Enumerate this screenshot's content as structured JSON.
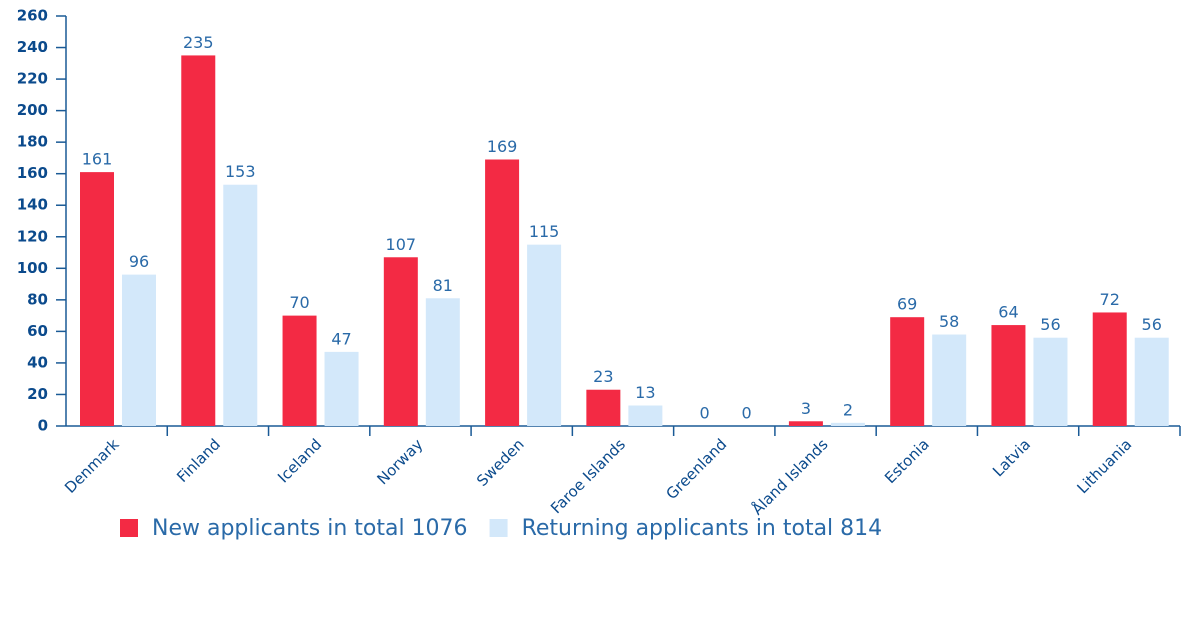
{
  "chart_data": {
    "type": "bar",
    "categories": [
      "Denmark",
      "Finland",
      "Iceland",
      "Norway",
      "Sweden",
      "Faroe Islands",
      "Greenland",
      "Åland Islands",
      "Estonia",
      "Latvia",
      "Lithuania"
    ],
    "series": [
      {
        "name": "New applicants in total 1076",
        "color": "#f32a44",
        "values": [
          161,
          235,
          70,
          107,
          169,
          23,
          0,
          3,
          69,
          64,
          72
        ]
      },
      {
        "name": "Returning applicants in total 814",
        "color": "#d3e8fa",
        "values": [
          96,
          153,
          47,
          81,
          115,
          13,
          0,
          2,
          58,
          56,
          56
        ]
      }
    ],
    "ylim": [
      0,
      260
    ],
    "yticks": [
      0,
      20,
      40,
      60,
      80,
      100,
      120,
      140,
      160,
      180,
      200,
      220,
      240,
      260
    ],
    "legend": "bottom"
  }
}
